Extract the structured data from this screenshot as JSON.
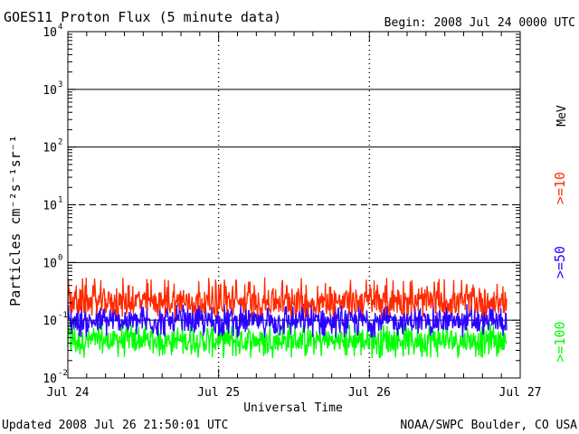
{
  "header": {
    "title": "GOES11 Proton Flux (5 minute data)",
    "begin": "Begin: 2008 Jul 24 0000 UTC"
  },
  "footer": {
    "updated": "Updated 2008 Jul 26 21:50:01 UTC",
    "source": "NOAA/SWPC Boulder, CO USA"
  },
  "chart_data": {
    "type": "line",
    "title": "GOES11 Proton Flux (5 minute data)",
    "xlabel": "Universal Time",
    "ylabel": "Particles cm⁻²s⁻¹sr⁻¹",
    "y_scale": "log",
    "ylim": [
      0.01,
      10000
    ],
    "y_ticks": [
      {
        "base": "10",
        "exp": "-2"
      },
      {
        "base": "10",
        "exp": "-1"
      },
      {
        "base": "10",
        "exp": "0"
      },
      {
        "base": "10",
        "exp": "1"
      },
      {
        "base": "10",
        "exp": "2"
      },
      {
        "base": "10",
        "exp": "3"
      },
      {
        "base": "10",
        "exp": "4"
      }
    ],
    "x_ticks": [
      "Jul 24",
      "Jul 25",
      "Jul 26",
      "Jul 27"
    ],
    "xlim": [
      "2008-07-24T00:00",
      "2008-07-27T00:00"
    ],
    "x_end_of_data": "2008-07-26T21:50",
    "unit_label": "MeV",
    "threshold_lines": [
      {
        "value": 1000,
        "style": "solid"
      },
      {
        "value": 100,
        "style": "solid"
      },
      {
        "value": 10,
        "style": "dashed"
      },
      {
        "value": 1,
        "style": "solid"
      },
      {
        "value": 0.1,
        "style": "solid"
      }
    ],
    "series": [
      {
        "name": ">=10",
        "color": "#ff2a00",
        "typical_value": 0.2,
        "min_value": 0.11,
        "max_value": 0.55
      },
      {
        "name": ">=50",
        "color": "#2a00ff",
        "typical_value": 0.095,
        "min_value": 0.05,
        "max_value": 0.2
      },
      {
        "name": ">=100",
        "color": "#00ff00",
        "typical_value": 0.045,
        "min_value": 0.022,
        "max_value": 0.09
      }
    ]
  }
}
